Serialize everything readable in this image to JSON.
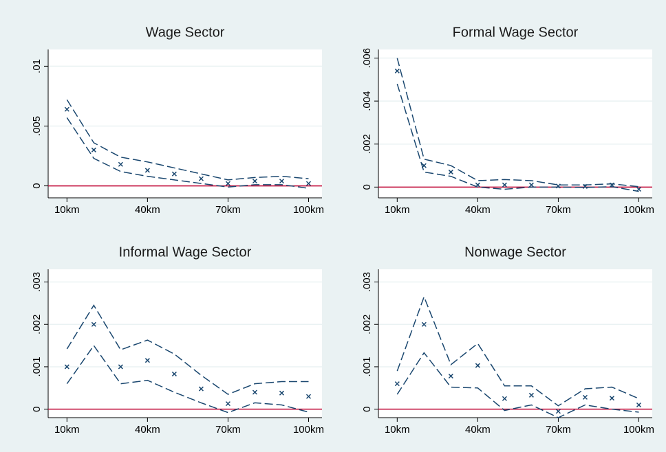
{
  "chart_data": [
    {
      "type": "line",
      "title": "Wage Sector",
      "x": [
        10,
        20,
        30,
        40,
        50,
        60,
        70,
        80,
        90,
        100
      ],
      "series": [
        {
          "color": "#1a476f",
          "style": "markers",
          "values": [
            0.0064,
            0.003,
            0.0018,
            0.0013,
            0.001,
            0.0006,
            0.0002,
            0.0004,
            0.0004,
            0.0002
          ]
        },
        {
          "color": "#1a476f",
          "style": "dashed",
          "values": [
            0.0072,
            0.0036,
            0.0024,
            0.002,
            0.0015,
            0.001,
            0.0005,
            0.0007,
            0.0008,
            0.0006
          ]
        },
        {
          "color": "#1a476f",
          "style": "dashed",
          "values": [
            0.0057,
            0.0023,
            0.0012,
            0.0008,
            0.0005,
            0.0002,
            -0.0001,
            0.0001,
            0.0001,
            -0.0002
          ]
        }
      ],
      "xlim": [
        3,
        105
      ],
      "xticks": [
        {
          "value": 10,
          "label": "10km"
        },
        {
          "value": 40,
          "label": "40km"
        },
        {
          "value": 70,
          "label": "70km"
        },
        {
          "value": 100,
          "label": "100km"
        }
      ],
      "ylim": [
        -0.001,
        0.0114
      ],
      "yticks": [
        0,
        {
          "value": 0.005,
          "label": ".005"
        },
        {
          "value": 0.01,
          "label": ".01"
        }
      ],
      "grid": true,
      "hline": 0,
      "hline_color": "#c10534"
    },
    {
      "type": "line",
      "title": "Formal Wage Sector",
      "x": [
        10,
        20,
        30,
        40,
        50,
        60,
        70,
        80,
        90,
        100
      ],
      "series": [
        {
          "color": "#1a476f",
          "style": "markers",
          "values": [
            0.0054,
            0.001,
            0.0007,
            0.0001,
            0.0001,
            0.0001,
            5e-05,
            3e-05,
            0.0001,
            -0.0001
          ]
        },
        {
          "color": "#1a476f",
          "style": "dashed",
          "values": [
            0.006,
            0.0013,
            0.001,
            0.0003,
            0.00035,
            0.0003,
            0.0001,
            0.0001,
            0.00015,
            2e-05
          ]
        },
        {
          "color": "#1a476f",
          "style": "dashed",
          "values": [
            0.0048,
            0.0007,
            0.0005,
            0.0,
            -0.0001,
            0.0,
            0.0,
            -2e-05,
            2e-05,
            -0.0002
          ]
        }
      ],
      "xlim": [
        3,
        105
      ],
      "xticks": [
        {
          "value": 10,
          "label": "10km"
        },
        {
          "value": 40,
          "label": "40km"
        },
        {
          "value": 70,
          "label": "70km"
        },
        {
          "value": 100,
          "label": "100km"
        }
      ],
      "ylim": [
        -0.0005,
        0.0064
      ],
      "yticks": [
        0,
        {
          "value": 0.002,
          "label": ".002"
        },
        {
          "value": 0.004,
          "label": ".004"
        },
        {
          "value": 0.006,
          "label": ".006"
        }
      ],
      "grid": true,
      "hline": 0,
      "hline_color": "#c10534"
    },
    {
      "type": "line",
      "title": "Informal Wage Sector",
      "x": [
        10,
        20,
        30,
        40,
        50,
        60,
        70,
        80,
        90,
        100
      ],
      "series": [
        {
          "color": "#1a476f",
          "style": "markers",
          "values": [
            0.001,
            0.002,
            0.001,
            0.00115,
            0.00083,
            0.00048,
            0.00013,
            0.0004,
            0.00038,
            0.0003
          ]
        },
        {
          "color": "#1a476f",
          "style": "dashed",
          "values": [
            0.00142,
            0.00245,
            0.0014,
            0.00163,
            0.0013,
            0.0008,
            0.00035,
            0.0006,
            0.00065,
            0.00065
          ]
        },
        {
          "color": "#1a476f",
          "style": "dashed",
          "values": [
            0.0006,
            0.0015,
            0.0006,
            0.00068,
            0.0004,
            0.00015,
            -8e-05,
            0.00015,
            0.0001,
            -7e-05
          ]
        }
      ],
      "xlim": [
        3,
        105
      ],
      "xticks": [
        {
          "value": 10,
          "label": "10km"
        },
        {
          "value": 40,
          "label": "40km"
        },
        {
          "value": 70,
          "label": "70km"
        },
        {
          "value": 100,
          "label": "100km"
        }
      ],
      "ylim": [
        -0.0002,
        0.0033
      ],
      "yticks": [
        0,
        {
          "value": 0.001,
          "label": ".001"
        },
        {
          "value": 0.002,
          "label": ".002"
        },
        {
          "value": 0.003,
          "label": ".003"
        }
      ],
      "grid": true,
      "hline": 0,
      "hline_color": "#c10534"
    },
    {
      "type": "line",
      "title": "Nonwage Sector",
      "x": [
        10,
        20,
        30,
        40,
        50,
        60,
        70,
        80,
        90,
        100
      ],
      "series": [
        {
          "color": "#1a476f",
          "style": "markers",
          "values": [
            0.0006,
            0.002,
            0.00078,
            0.00103,
            0.00025,
            0.00033,
            -5e-05,
            0.00028,
            0.00026,
            0.0001
          ]
        },
        {
          "color": "#1a476f",
          "style": "dashed",
          "values": [
            0.0009,
            0.00265,
            0.00105,
            0.00155,
            0.00055,
            0.00055,
            8e-05,
            0.00048,
            0.00052,
            0.00025
          ]
        },
        {
          "color": "#1a476f",
          "style": "dashed",
          "values": [
            0.00035,
            0.00133,
            0.00052,
            0.0005,
            -3e-05,
            0.0001,
            -0.0002,
            0.0001,
            0.0,
            -7e-05
          ]
        }
      ],
      "xlim": [
        3,
        105
      ],
      "xticks": [
        {
          "value": 10,
          "label": "10km"
        },
        {
          "value": 40,
          "label": "40km"
        },
        {
          "value": 70,
          "label": "70km"
        },
        {
          "value": 100,
          "label": "100km"
        }
      ],
      "ylim": [
        -0.0002,
        0.0033
      ],
      "yticks": [
        0,
        {
          "value": 0.001,
          "label": ".001"
        },
        {
          "value": 0.002,
          "label": ".002"
        },
        {
          "value": 0.003,
          "label": ".003"
        }
      ],
      "grid": true,
      "hline": 0,
      "hline_color": "#c10534"
    }
  ]
}
